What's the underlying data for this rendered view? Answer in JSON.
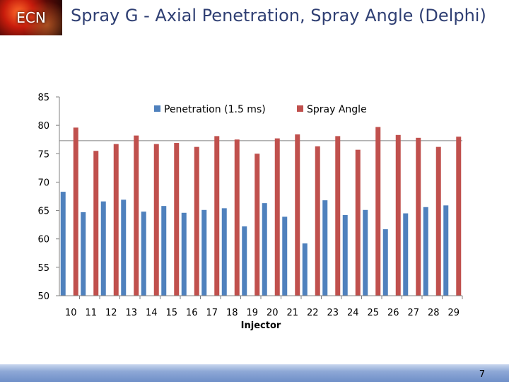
{
  "header": {
    "logo_text": "ECN",
    "title": "Spray G - Axial Penetration, Spray Angle (Delphi)"
  },
  "footer": {
    "page_number": "7"
  },
  "colors": {
    "title": "#2f3f73",
    "penetration": "#4f81bd",
    "spray_angle": "#c0504d",
    "footer": "#8ea8d6"
  },
  "chart_data": {
    "type": "bar",
    "title": "",
    "xlabel": "Injector",
    "ylabel": "",
    "ylim": [
      50,
      85
    ],
    "yticks": [
      50,
      55,
      60,
      65,
      70,
      75,
      80,
      85
    ],
    "legend_position": "top",
    "reference_line": 77.3,
    "categories": [
      "10",
      "11",
      "12",
      "13",
      "14",
      "15",
      "16",
      "17",
      "18",
      "19",
      "20",
      "21",
      "22",
      "23",
      "24",
      "25",
      "26",
      "27",
      "28",
      "29"
    ],
    "series": [
      {
        "name": "Penetration (1.5 ms)",
        "color": "#4f81bd",
        "values": [
          68.3,
          64.7,
          66.6,
          66.9,
          64.8,
          65.8,
          64.6,
          65.1,
          65.4,
          62.2,
          66.3,
          63.9,
          59.2,
          66.8,
          64.2,
          65.1,
          61.7,
          64.5,
          65.6,
          65.9
        ]
      },
      {
        "name": "Spray Angle",
        "color": "#c0504d",
        "values": [
          79.6,
          75.5,
          76.7,
          78.2,
          76.7,
          76.9,
          76.2,
          78.1,
          77.5,
          75.0,
          77.7,
          78.4,
          76.3,
          78.1,
          75.7,
          79.7,
          78.3,
          77.8,
          76.2,
          78.0
        ]
      }
    ]
  }
}
